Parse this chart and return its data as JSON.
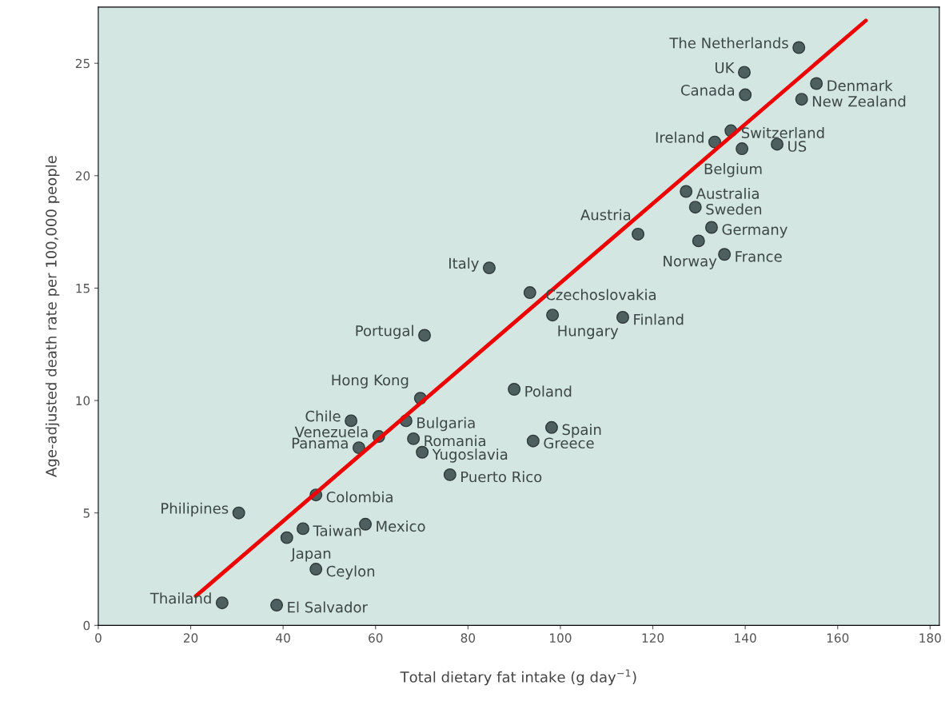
{
  "chart_data": {
    "type": "scatter",
    "xlabel": "Total dietary fat intake (g day$^{−1}$)",
    "ylabel": "Age-adjusted death rate per 100,000 people",
    "xlim": [
      0,
      182
    ],
    "ylim": [
      0,
      27.5
    ],
    "xticks": [
      0,
      20,
      40,
      60,
      80,
      100,
      120,
      140,
      160,
      180
    ],
    "yticks": [
      0,
      5,
      10,
      15,
      20,
      25
    ],
    "grid": false,
    "marker": "circle",
    "series": [
      {
        "type": "scatter",
        "color": "#4d5f5f",
        "x": [
          151.6,
          139.8,
          155.4,
          140.0,
          152.2,
          136.9,
          133.4,
          146.9,
          139.3,
          127.2,
          129.2,
          132.7,
          116.8,
          129.9,
          135.5,
          84.6,
          93.4,
          98.3,
          113.5,
          70.6,
          69.7,
          90.0,
          54.7,
          66.6,
          98.1,
          60.7,
          68.2,
          94.1,
          56.4,
          70.1,
          76.1,
          47.1,
          30.4,
          57.8,
          44.3,
          40.8,
          47.1,
          26.8,
          38.6
        ],
        "values": [
          25.7,
          24.6,
          24.1,
          23.6,
          23.4,
          22.0,
          21.5,
          21.4,
          21.2,
          19.3,
          18.6,
          17.7,
          17.4,
          17.1,
          16.5,
          15.9,
          14.8,
          13.8,
          13.7,
          12.9,
          10.1,
          10.5,
          9.1,
          9.1,
          8.8,
          8.4,
          8.3,
          8.2,
          7.9,
          7.7,
          6.7,
          5.8,
          5.0,
          4.5,
          4.3,
          3.9,
          2.5,
          1.0,
          0.9
        ]
      },
      {
        "type": "line",
        "color": "#ee0000",
        "line_style": "solid",
        "marker": "none",
        "x": [
          21.1,
          166.1
        ],
        "values": [
          1.3,
          26.9
        ]
      }
    ],
    "annotations": [
      {
        "text": "The Netherlands",
        "x": 151.6,
        "y": 25.7
      },
      {
        "text": "UK",
        "x": 139.8,
        "y": 24.6
      },
      {
        "text": "Denmark",
        "x": 155.4,
        "y": 24.1
      },
      {
        "text": "Canada",
        "x": 140.0,
        "y": 23.6
      },
      {
        "text": "New Zealand",
        "x": 152.2,
        "y": 23.4
      },
      {
        "text": "Switzerland",
        "x": 136.9,
        "y": 22.0
      },
      {
        "text": "Ireland",
        "x": 133.4,
        "y": 21.5
      },
      {
        "text": "US",
        "x": 146.9,
        "y": 21.4
      },
      {
        "text": "Belgium",
        "x": 139.3,
        "y": 21.2
      },
      {
        "text": "Australia",
        "x": 127.2,
        "y": 19.3
      },
      {
        "text": "Sweden",
        "x": 129.2,
        "y": 18.6
      },
      {
        "text": "Germany",
        "x": 132.7,
        "y": 17.7
      },
      {
        "text": "Austria",
        "x": 116.8,
        "y": 17.4
      },
      {
        "text": "Norway",
        "x": 129.9,
        "y": 17.1
      },
      {
        "text": "France",
        "x": 135.5,
        "y": 16.5
      },
      {
        "text": "Italy",
        "x": 84.6,
        "y": 15.9
      },
      {
        "text": "Czechoslovakia",
        "x": 93.4,
        "y": 14.8
      },
      {
        "text": "Hungary",
        "x": 98.3,
        "y": 13.8
      },
      {
        "text": "Finland",
        "x": 113.5,
        "y": 13.7
      },
      {
        "text": "Portugal",
        "x": 70.6,
        "y": 12.9
      },
      {
        "text": "Hong Kong",
        "x": 69.7,
        "y": 10.1
      },
      {
        "text": "Poland",
        "x": 90.0,
        "y": 10.5
      },
      {
        "text": "Chile",
        "x": 54.7,
        "y": 9.1
      },
      {
        "text": "Bulgaria",
        "x": 66.6,
        "y": 9.1
      },
      {
        "text": "Spain",
        "x": 98.1,
        "y": 8.8
      },
      {
        "text": "Venezuela",
        "x": 60.7,
        "y": 8.4
      },
      {
        "text": "Romania",
        "x": 68.2,
        "y": 8.3
      },
      {
        "text": "Greece",
        "x": 94.1,
        "y": 8.2
      },
      {
        "text": "Panama",
        "x": 56.4,
        "y": 7.9
      },
      {
        "text": "Yugoslavia",
        "x": 70.1,
        "y": 7.7
      },
      {
        "text": "Puerto Rico",
        "x": 76.1,
        "y": 6.7
      },
      {
        "text": "Colombia",
        "x": 47.1,
        "y": 5.8
      },
      {
        "text": "Philipines",
        "x": 30.4,
        "y": 5.0
      },
      {
        "text": "Mexico",
        "x": 57.8,
        "y": 4.5
      },
      {
        "text": "Taiwan",
        "x": 44.3,
        "y": 4.3
      },
      {
        "text": "Japan",
        "x": 40.8,
        "y": 3.9
      },
      {
        "text": "Ceylon",
        "x": 47.1,
        "y": 2.5
      },
      {
        "text": "Thailand",
        "x": 26.8,
        "y": 1.0
      },
      {
        "text": "El Salvador",
        "x": 38.6,
        "y": 0.9
      }
    ]
  }
}
